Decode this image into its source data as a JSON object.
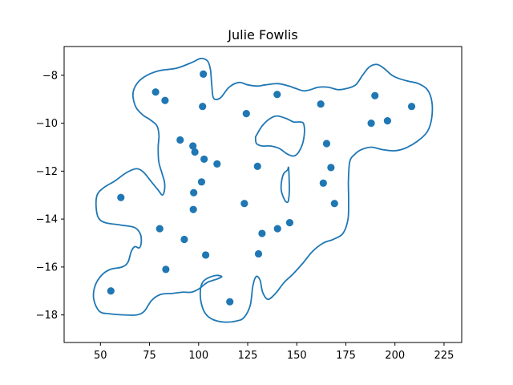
{
  "chart_data": {
    "type": "scatter",
    "title": "Julie Fowlis",
    "xlabel": "",
    "ylabel": "",
    "xlim": [
      31.5,
      234
    ],
    "ylim": [
      -19.15,
      -6.8
    ],
    "xticks": [
      50,
      75,
      100,
      125,
      150,
      175,
      200,
      225
    ],
    "yticks": [
      -18,
      -16,
      -14,
      -12,
      -10,
      -8
    ],
    "xtick_labels": [
      "50",
      "75",
      "100",
      "125",
      "150",
      "175",
      "200",
      "225"
    ],
    "ytick_labels": [
      "−18",
      "−16",
      "−14",
      "−12",
      "−10",
      "−8"
    ],
    "grid": false,
    "legend": false,
    "colors": {
      "series": "#1f77b4",
      "axes": "#000000",
      "background": "#ffffff"
    },
    "points": [
      {
        "x": 55.3,
        "y": -17.0
      },
      {
        "x": 60.4,
        "y": -13.1
      },
      {
        "x": 78.1,
        "y": -8.7
      },
      {
        "x": 80.2,
        "y": -14.4
      },
      {
        "x": 82.9,
        "y": -9.05
      },
      {
        "x": 83.3,
        "y": -16.1
      },
      {
        "x": 90.6,
        "y": -10.7
      },
      {
        "x": 92.7,
        "y": -14.85
      },
      {
        "x": 97.1,
        "y": -10.95
      },
      {
        "x": 97.3,
        "y": -13.6
      },
      {
        "x": 97.5,
        "y": -12.9
      },
      {
        "x": 98.1,
        "y": -11.2
      },
      {
        "x": 101.5,
        "y": -12.45
      },
      {
        "x": 102.0,
        "y": -9.3
      },
      {
        "x": 102.4,
        "y": -7.95
      },
      {
        "x": 102.8,
        "y": -11.5
      },
      {
        "x": 103.6,
        "y": -15.5
      },
      {
        "x": 109.4,
        "y": -11.7
      },
      {
        "x": 115.9,
        "y": -17.45
      },
      {
        "x": 123.3,
        "y": -13.35
      },
      {
        "x": 124.3,
        "y": -9.6
      },
      {
        "x": 130.0,
        "y": -11.8
      },
      {
        "x": 130.5,
        "y": -15.45
      },
      {
        "x": 132.3,
        "y": -14.6
      },
      {
        "x": 140.0,
        "y": -8.8
      },
      {
        "x": 140.2,
        "y": -14.4
      },
      {
        "x": 146.4,
        "y": -14.15
      },
      {
        "x": 162.2,
        "y": -9.2
      },
      {
        "x": 163.5,
        "y": -12.5
      },
      {
        "x": 165.2,
        "y": -10.85
      },
      {
        "x": 167.4,
        "y": -11.85
      },
      {
        "x": 169.2,
        "y": -13.35
      },
      {
        "x": 187.9,
        "y": -10.0
      },
      {
        "x": 189.8,
        "y": -8.85
      },
      {
        "x": 196.2,
        "y": -9.9
      },
      {
        "x": 208.5,
        "y": -9.3
      }
    ],
    "contours": [
      [
        [
          89,
          -7.7
        ],
        [
          97,
          -7.45
        ],
        [
          101,
          -7.3
        ],
        [
          104.5,
          -7.4
        ],
        [
          106,
          -7.75
        ],
        [
          106.7,
          -8.4
        ],
        [
          107.6,
          -8.95
        ],
        [
          111,
          -8.95
        ],
        [
          115.5,
          -8.5
        ],
        [
          120.5,
          -8.3
        ],
        [
          125,
          -8.4
        ],
        [
          130,
          -8.45
        ],
        [
          134,
          -8.4
        ],
        [
          140.5,
          -8.35
        ],
        [
          146,
          -8.45
        ],
        [
          149.5,
          -8.55
        ],
        [
          153.5,
          -8.65
        ],
        [
          157,
          -8.6
        ],
        [
          161,
          -8.5
        ],
        [
          166,
          -8.5
        ],
        [
          171,
          -8.6
        ],
        [
          175.5,
          -8.55
        ],
        [
          180,
          -8.4
        ],
        [
          183.5,
          -8.0
        ],
        [
          187,
          -7.65
        ],
        [
          191,
          -7.55
        ],
        [
          195,
          -7.75
        ],
        [
          198.5,
          -8.0
        ],
        [
          202.5,
          -8.15
        ],
        [
          207,
          -8.25
        ],
        [
          212,
          -8.35
        ],
        [
          216.5,
          -8.6
        ],
        [
          218.8,
          -9.1
        ],
        [
          218.7,
          -9.8
        ],
        [
          216.5,
          -10.35
        ],
        [
          211.5,
          -10.75
        ],
        [
          205,
          -11.05
        ],
        [
          199.5,
          -11.15
        ],
        [
          193.5,
          -11.1
        ],
        [
          188,
          -11.0
        ],
        [
          183,
          -11.1
        ],
        [
          179.5,
          -11.3
        ],
        [
          177,
          -11.6
        ],
        [
          176.3,
          -12.4
        ],
        [
          176.4,
          -13.2
        ],
        [
          176.1,
          -14.0
        ],
        [
          173.5,
          -14.6
        ],
        [
          168.5,
          -14.85
        ],
        [
          163.5,
          -15.0
        ],
        [
          158,
          -15.35
        ],
        [
          153,
          -15.85
        ],
        [
          148,
          -16.3
        ],
        [
          143.5,
          -16.65
        ],
        [
          139.2,
          -17.1
        ],
        [
          135.3,
          -17.35
        ],
        [
          132.6,
          -17.05
        ],
        [
          131.3,
          -16.55
        ],
        [
          129.3,
          -16.4
        ],
        [
          127.6,
          -16.8
        ],
        [
          126.3,
          -17.6
        ],
        [
          123.2,
          -18.1
        ],
        [
          119.5,
          -18.25
        ],
        [
          113.5,
          -18.3
        ],
        [
          107.5,
          -18.2
        ],
        [
          103.5,
          -17.95
        ],
        [
          101.2,
          -17.45
        ],
        [
          101,
          -16.9
        ],
        [
          102.4,
          -16.6
        ],
        [
          105,
          -16.45
        ],
        [
          109,
          -16.35
        ],
        [
          111.8,
          -16.4
        ],
        [
          109.5,
          -16.5
        ],
        [
          104.3,
          -16.65
        ],
        [
          100.4,
          -16.9
        ],
        [
          96.5,
          -17.05
        ],
        [
          92,
          -17.05
        ],
        [
          87,
          -17.1
        ],
        [
          80.5,
          -17.15
        ],
        [
          76,
          -17.4
        ],
        [
          72.3,
          -17.85
        ],
        [
          68.5,
          -18.0
        ],
        [
          62,
          -18.0
        ],
        [
          54.5,
          -17.95
        ],
        [
          49.5,
          -17.85
        ],
        [
          46.6,
          -17.35
        ],
        [
          47.2,
          -16.8
        ],
        [
          50.5,
          -16.35
        ],
        [
          55,
          -16.1
        ],
        [
          61,
          -16.0
        ],
        [
          64,
          -15.8
        ],
        [
          65.7,
          -15.35
        ],
        [
          67.5,
          -15.15
        ],
        [
          69.8,
          -15.2
        ],
        [
          70.8,
          -14.95
        ],
        [
          70.2,
          -14.6
        ],
        [
          67.3,
          -14.35
        ],
        [
          60.3,
          -14.25
        ],
        [
          52.5,
          -14.15
        ],
        [
          49,
          -13.95
        ],
        [
          47.8,
          -13.5
        ],
        [
          48.3,
          -13.0
        ],
        [
          51.5,
          -12.7
        ],
        [
          57.5,
          -12.4
        ],
        [
          63.5,
          -12.05
        ],
        [
          68.5,
          -11.9
        ],
        [
          72,
          -12.05
        ],
        [
          75.5,
          -12.4
        ],
        [
          79.5,
          -12.8
        ],
        [
          81.5,
          -13.0
        ],
        [
          82.6,
          -12.8
        ],
        [
          82.6,
          -12.45
        ],
        [
          81.2,
          -12.05
        ],
        [
          79.7,
          -11.6
        ],
        [
          79.4,
          -11.0
        ],
        [
          79.8,
          -10.5
        ],
        [
          78.7,
          -10.1
        ],
        [
          75.2,
          -9.85
        ],
        [
          71.5,
          -9.65
        ],
        [
          68.2,
          -9.35
        ],
        [
          66.6,
          -8.9
        ],
        [
          67.2,
          -8.55
        ],
        [
          70.2,
          -8.2
        ],
        [
          75,
          -7.95
        ],
        [
          80.5,
          -7.8
        ],
        [
          89,
          -7.7
        ]
      ],
      [
        [
          129.5,
          -10.5
        ],
        [
          132.5,
          -10.1
        ],
        [
          136.5,
          -9.8
        ],
        [
          140,
          -9.7
        ],
        [
          144.5,
          -9.8
        ],
        [
          148.5,
          -9.95
        ],
        [
          152,
          -9.95
        ],
        [
          153.6,
          -10.05
        ],
        [
          153.8,
          -10.5
        ],
        [
          152.3,
          -11.0
        ],
        [
          149.2,
          -11.35
        ],
        [
          145.5,
          -11.3
        ],
        [
          141,
          -11.05
        ],
        [
          136.5,
          -10.95
        ],
        [
          132.5,
          -10.95
        ],
        [
          129.5,
          -10.85
        ],
        [
          129,
          -10.6
        ],
        [
          129.5,
          -10.5
        ]
      ],
      [
        [
          145.8,
          -11.85
        ],
        [
          146.1,
          -12.3
        ],
        [
          146.2,
          -12.85
        ],
        [
          145.8,
          -13.2
        ],
        [
          145.2,
          -13.3
        ],
        [
          143.8,
          -13.2
        ],
        [
          142.1,
          -12.8
        ],
        [
          142.3,
          -12.4
        ],
        [
          143.4,
          -12.1
        ],
        [
          145.3,
          -11.95
        ],
        [
          145.8,
          -11.85
        ]
      ]
    ]
  }
}
